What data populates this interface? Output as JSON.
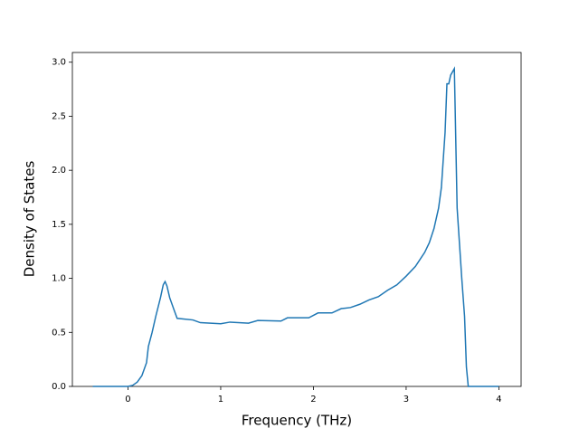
{
  "chart_data": {
    "type": "line",
    "x_label": "Frequency (THz)",
    "y_label": "Density of States",
    "x": [
      -0.38,
      0,
      0.05,
      0.1,
      0.15,
      0.2,
      0.22,
      0.26,
      0.3,
      0.35,
      0.38,
      0.4,
      0.42,
      0.45,
      0.5,
      0.53,
      0.7,
      0.78,
      1.0,
      1.1,
      1.3,
      1.4,
      1.65,
      1.72,
      1.95,
      2.05,
      2.2,
      2.3,
      2.4,
      2.5,
      2.6,
      2.7,
      2.8,
      2.9,
      3.0,
      3.1,
      3.2,
      3.25,
      3.3,
      3.35,
      3.38,
      3.42,
      3.44,
      3.46,
      3.48,
      3.52,
      3.55,
      3.6,
      3.63,
      3.65,
      3.67,
      4.0
    ],
    "series": [
      {
        "color": "#1f77b4",
        "values": [
          0,
          0,
          0.01,
          0.04,
          0.1,
          0.22,
          0.37,
          0.5,
          0.65,
          0.82,
          0.94,
          0.97,
          0.93,
          0.82,
          0.7,
          0.63,
          0.615,
          0.59,
          0.58,
          0.595,
          0.585,
          0.61,
          0.605,
          0.635,
          0.635,
          0.68,
          0.68,
          0.72,
          0.73,
          0.76,
          0.8,
          0.83,
          0.89,
          0.94,
          1.02,
          1.11,
          1.24,
          1.33,
          1.46,
          1.65,
          1.84,
          2.35,
          2.8,
          2.8,
          2.88,
          2.94,
          1.65,
          1.0,
          0.65,
          0.18,
          0.0,
          0
        ]
      }
    ],
    "xlim": [
      -0.6,
      4.24
    ],
    "ylim": [
      0,
      3.09
    ],
    "xticks": [
      0,
      1,
      2,
      3,
      4
    ],
    "yticks": [
      {
        "value": 0,
        "label": "0.0"
      },
      0.5,
      {
        "value": 1,
        "label": "1.0"
      },
      1.5,
      {
        "value": 2,
        "label": "2.0"
      },
      2.5,
      {
        "value": 3,
        "label": "3.0"
      }
    ]
  }
}
